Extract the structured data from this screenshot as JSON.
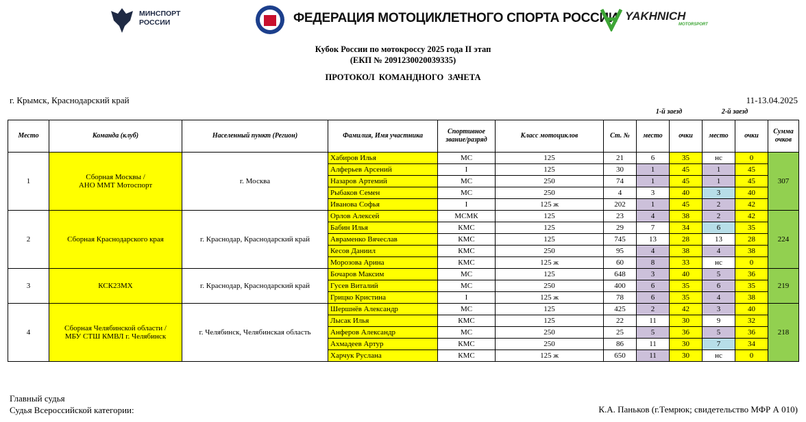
{
  "header": {
    "minsport": [
      "МИНСПОРТ",
      "РОССИИ"
    ],
    "federation": "ФЕДЕРАЦИЯ МОТОЦИКЛЕТНОГО СПОРТА РОССИИ",
    "sponsor": "YAKHNICH",
    "sponsor_sub": "MOTORSPORT"
  },
  "title": {
    "line1": "Кубок России по мотокроссу 2025 года II этап",
    "line2": "(ЕКП № 2091230020039335)",
    "line3": "ПРОТОКОЛ  КОМАНДНОГО  ЗАЧЕТА"
  },
  "location": "г. Крымск, Краснодарский край",
  "date": "11-13.04.2025",
  "race_labels": [
    "1-й заезд",
    "2-й заезд"
  ],
  "table": {
    "columns": [
      "Место",
      "Команда (клуб)",
      "Населенный пункт (Регион)",
      "Фамилия, Имя участника",
      "Спортивное звание/разряд",
      "Класс мотоциклов",
      "Ст. №",
      "место",
      "очки",
      "место",
      "очки",
      "Сумма очков"
    ],
    "teams": [
      {
        "place": 1,
        "name": [
          "Сборная Москвы /",
          "АНО ММТ Мотоспорт"
        ],
        "city": "г. Москва",
        "sum": 307,
        "members": [
          {
            "name": "Хабиров Илья",
            "rank": "МС",
            "class": "125",
            "number": 21,
            "race1": {
              "place": 6,
              "points": 35,
              "color": null
            },
            "race2": {
              "place": "нс",
              "points": 0,
              "color": null
            }
          },
          {
            "name": "Алферьев Арсений",
            "rank": "I",
            "class": "125",
            "number": 30,
            "race1": {
              "place": 1,
              "points": 45,
              "color": "#ccc0da"
            },
            "race2": {
              "place": 1,
              "points": 45,
              "color": "#ccc0da"
            }
          },
          {
            "name": "Назаров Артемий",
            "rank": "МС",
            "class": "250",
            "number": 74,
            "race1": {
              "place": 1,
              "points": 45,
              "color": "#ccc0da"
            },
            "race2": {
              "place": 1,
              "points": 45,
              "color": "#ccc0da"
            }
          },
          {
            "name": "Рыбаков Семен",
            "rank": "МС",
            "class": "250",
            "number": 4,
            "race1": {
              "place": 3,
              "points": 40,
              "color": null
            },
            "race2": {
              "place": 3,
              "points": 40,
              "color": "#b7dee8"
            }
          },
          {
            "name": "Иванова Софья",
            "rank": "I",
            "class": "125 ж",
            "number": 202,
            "race1": {
              "place": 1,
              "points": 45,
              "color": "#ccc0da"
            },
            "race2": {
              "place": 2,
              "points": 42,
              "color": "#ccc0da"
            }
          }
        ]
      },
      {
        "place": 2,
        "name": [
          "Сборная Краснодарского края"
        ],
        "city": "г. Краснодар, Краснодарский край",
        "sum": 224,
        "members": [
          {
            "name": "Орлов Алексей",
            "rank": "МСМК",
            "class": "125",
            "number": 23,
            "race1": {
              "place": 4,
              "points": 38,
              "color": "#ccc0da"
            },
            "race2": {
              "place": 2,
              "points": 42,
              "color": "#ccc0da"
            }
          },
          {
            "name": "Бабин Илья",
            "rank": "КМС",
            "class": "125",
            "number": 29,
            "race1": {
              "place": 7,
              "points": 34,
              "color": null
            },
            "race2": {
              "place": 6,
              "points": 35,
              "color": "#b7dee8"
            }
          },
          {
            "name": "Авраменко Вячеслав",
            "rank": "КМС",
            "class": "125",
            "number": 745,
            "race1": {
              "place": 13,
              "points": 28,
              "color": null
            },
            "race2": {
              "place": 13,
              "points": 28,
              "color": null
            }
          },
          {
            "name": "Кесов Даниил",
            "rank": "КМС",
            "class": "250",
            "number": 95,
            "race1": {
              "place": 4,
              "points": 38,
              "color": "#ccc0da"
            },
            "race2": {
              "place": 4,
              "points": 38,
              "color": "#ccc0da"
            }
          },
          {
            "name": "Морозова Арина",
            "rank": "КМС",
            "class": "125 ж",
            "number": 60,
            "race1": {
              "place": 8,
              "points": 33,
              "color": "#ccc0da"
            },
            "race2": {
              "place": "нс",
              "points": 0,
              "color": null
            }
          }
        ]
      },
      {
        "place": 3,
        "name": [
          "КСК23МХ"
        ],
        "city": "г. Краснодар, Краснодарский край",
        "sum": 219,
        "members": [
          {
            "name": "Бочаров Максим",
            "rank": "МС",
            "class": "125",
            "number": 648,
            "race1": {
              "place": 3,
              "points": 40,
              "color": "#ccc0da"
            },
            "race2": {
              "place": 5,
              "points": 36,
              "color": "#ccc0da"
            }
          },
          {
            "name": "Гусев Виталий",
            "rank": "МС",
            "class": "250",
            "number": 400,
            "race1": {
              "place": 6,
              "points": 35,
              "color": "#ccc0da"
            },
            "race2": {
              "place": 6,
              "points": 35,
              "color": "#ccc0da"
            }
          },
          {
            "name": "Грицко Кристина",
            "rank": "I",
            "class": "125 ж",
            "number": 78,
            "race1": {
              "place": 6,
              "points": 35,
              "color": "#ccc0da"
            },
            "race2": {
              "place": 4,
              "points": 38,
              "color": "#ccc0da"
            }
          }
        ]
      },
      {
        "place": 4,
        "name": [
          "Сборная Челябинской области /",
          "МБУ СТШ КМВЛ г. Челябинск"
        ],
        "city": "г. Челябинск, Челябинская область",
        "sum": 218,
        "members": [
          {
            "name": "Шершнёв Александр",
            "rank": "МС",
            "class": "125",
            "number": 425,
            "race1": {
              "place": 2,
              "points": 42,
              "color": "#ccc0da"
            },
            "race2": {
              "place": 3,
              "points": 40,
              "color": "#ccc0da"
            }
          },
          {
            "name": "Лысак Илья",
            "rank": "КМС",
            "class": "125",
            "number": 22,
            "race1": {
              "place": 11,
              "points": 30,
              "color": null
            },
            "race2": {
              "place": 9,
              "points": 32,
              "color": null
            }
          },
          {
            "name": "Анферов Александр",
            "rank": "МС",
            "class": "250",
            "number": 25,
            "race1": {
              "place": 5,
              "points": 36,
              "color": "#ccc0da"
            },
            "race2": {
              "place": 5,
              "points": 36,
              "color": "#ccc0da"
            }
          },
          {
            "name": "Ахмадеев Артур",
            "rank": "КМС",
            "class": "250",
            "number": 86,
            "race1": {
              "place": 11,
              "points": 30,
              "color": null
            },
            "race2": {
              "place": 7,
              "points": 34,
              "color": "#b7dee8"
            }
          },
          {
            "name": "Харчук Руслана",
            "rank": "КМС",
            "class": "125 ж",
            "number": 650,
            "race1": {
              "place": 11,
              "points": 30,
              "color": "#ccc0da"
            },
            "race2": {
              "place": "нс",
              "points": 0,
              "color": null
            }
          }
        ]
      }
    ]
  },
  "footer": {
    "left": [
      "Главный судья",
      "Судья Всероссийской категории:"
    ],
    "right": "К.А. Паньков (г.Темрюк; свидетельство МФР А 010)"
  }
}
